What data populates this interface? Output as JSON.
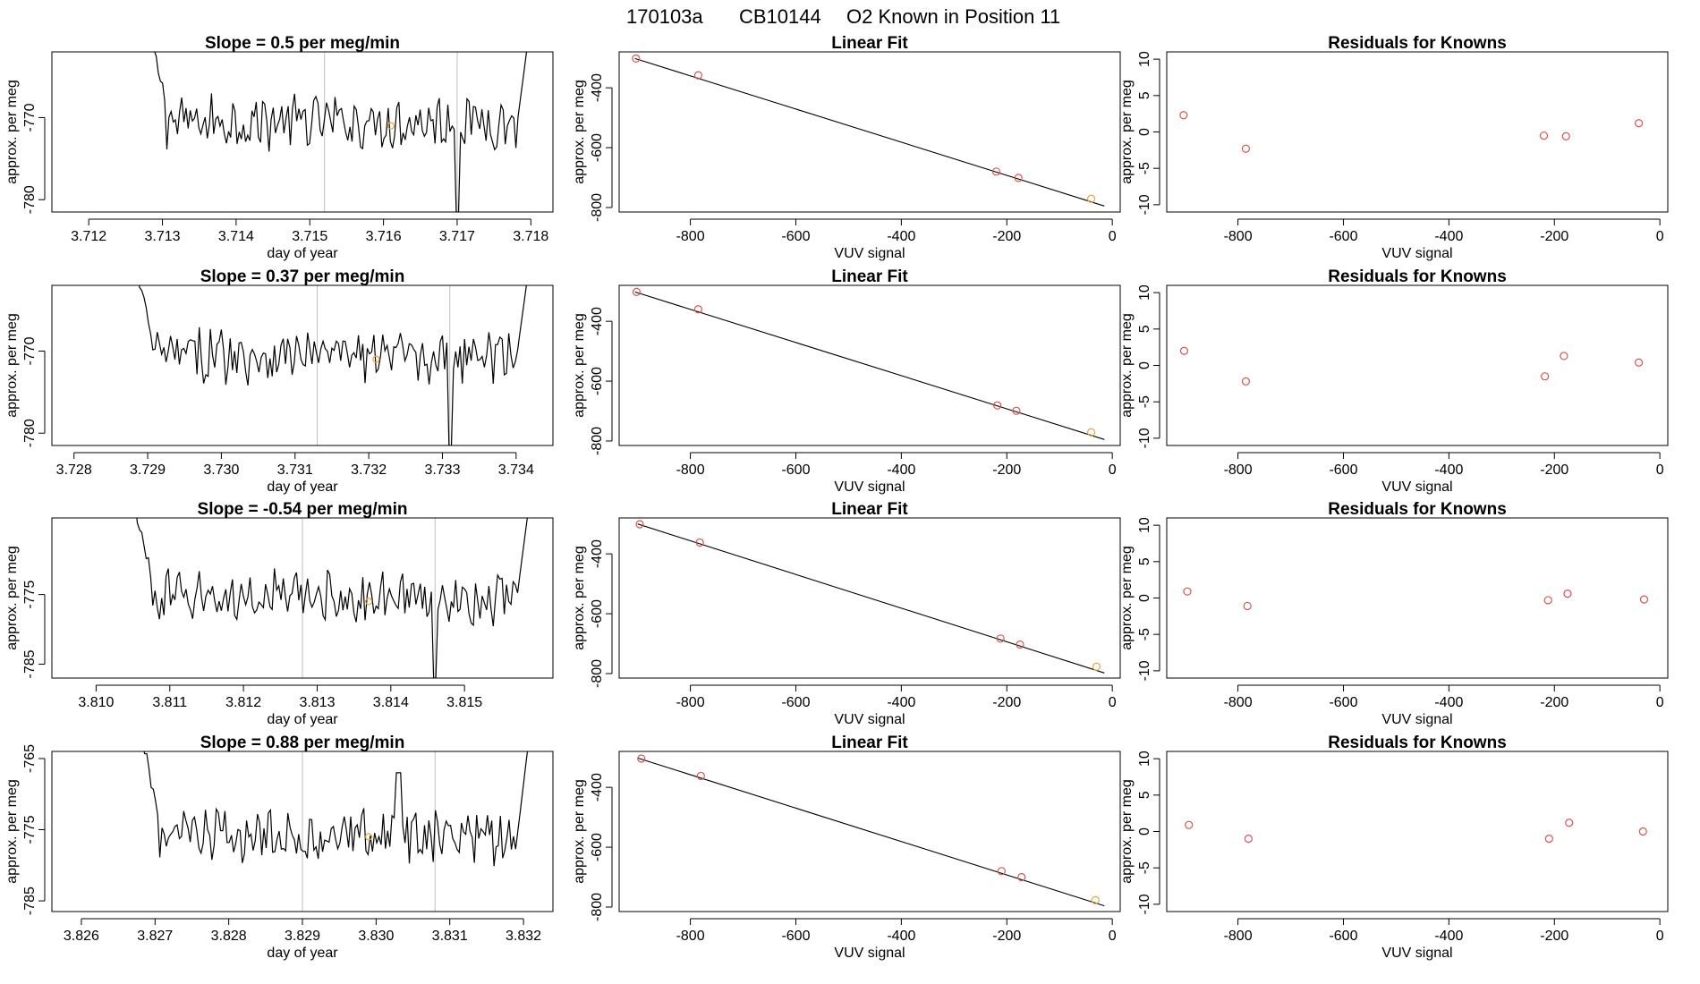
{
  "figure_title": {
    "run": "170103a",
    "tank": "CB10144",
    "description": "O2 Known in Position  11"
  },
  "colors": {
    "trace": "#000000",
    "axes": "#000000",
    "marker_known": "#d9534f",
    "marker_sample": "#e8a33d",
    "vline": "#bfbfbf"
  },
  "chart_data": [
    {
      "row": 1,
      "panel": "time_series",
      "type": "line",
      "title": "Slope =  0.5  per meg/min",
      "xlabel": "day of year",
      "ylabel": "approx. per meg",
      "xlim": [
        3.7115,
        3.7183
      ],
      "ylim": [
        -781.5,
        -762
      ],
      "xticks": [
        3.712,
        3.713,
        3.714,
        3.715,
        3.716,
        3.717,
        3.718
      ],
      "xtick_labels": [
        "3.712",
        "3.713",
        "3.714",
        "3.715",
        "3.716",
        "3.717",
        "3.718"
      ],
      "yticks": [
        -780,
        -770
      ],
      "ytick_labels": [
        "-780",
        "-770"
      ],
      "vlines": [
        3.7152,
        3.717
      ],
      "trace_x_range": [
        3.7128,
        3.718
      ],
      "trace_center": -770.5,
      "trace_amplitude": 2.8,
      "edge_high": true,
      "dip": {
        "x": 3.717,
        "y": -782
      },
      "sample_marker": {
        "x": 3.7161,
        "y": -771
      }
    },
    {
      "row": 1,
      "panel": "linear_fit",
      "type": "scatter",
      "title": "Linear Fit",
      "xlabel": "VUV signal",
      "ylabel": "approx. per meg",
      "xlim": [
        -935,
        15
      ],
      "ylim": [
        -815,
        -280
      ],
      "xticks": [
        -800,
        -600,
        -400,
        -200,
        0
      ],
      "xtick_labels": [
        "-800",
        "-600",
        "-400",
        "-200",
        "0"
      ],
      "yticks": [
        -800,
        -600,
        -400
      ],
      "ytick_labels": [
        "-800",
        "-600",
        "-400"
      ],
      "fit_line": {
        "x": [
          -905,
          -15
        ],
        "y": [
          -302,
          -795
        ]
      },
      "points": [
        {
          "x": -903,
          "y": -302,
          "kind": "known"
        },
        {
          "x": -785,
          "y": -358,
          "kind": "known"
        },
        {
          "x": -220,
          "y": -680,
          "kind": "known"
        },
        {
          "x": -178,
          "y": -701,
          "kind": "known"
        },
        {
          "x": -40,
          "y": -771,
          "kind": "sample"
        }
      ]
    },
    {
      "row": 1,
      "panel": "residuals",
      "type": "scatter",
      "title": "Residuals for Knowns",
      "xlabel": "VUV signal",
      "ylabel": "approx. per meg",
      "xlim": [
        -935,
        15
      ],
      "ylim": [
        -11,
        11
      ],
      "xticks": [
        -800,
        -600,
        -400,
        -200,
        0
      ],
      "xtick_labels": [
        "-800",
        "-600",
        "-400",
        "-200",
        "0"
      ],
      "yticks": [
        -10,
        -5,
        0,
        5,
        10
      ],
      "ytick_labels": [
        "-10",
        "-5",
        "0",
        "5",
        "10"
      ],
      "points": [
        {
          "x": -903,
          "y": 2.3
        },
        {
          "x": -785,
          "y": -2.3
        },
        {
          "x": -220,
          "y": -0.5
        },
        {
          "x": -178,
          "y": -0.6
        },
        {
          "x": -40,
          "y": 1.2
        }
      ]
    },
    {
      "row": 2,
      "panel": "time_series",
      "type": "line",
      "title": "Slope =  0.37  per meg/min",
      "xlabel": "day of year",
      "ylabel": "approx. per meg",
      "xlim": [
        3.7277,
        3.7345
      ],
      "ylim": [
        -781.5,
        -762
      ],
      "xticks": [
        3.728,
        3.729,
        3.73,
        3.731,
        3.732,
        3.733,
        3.734
      ],
      "xtick_labels": [
        "3.728",
        "3.729",
        "3.730",
        "3.731",
        "3.732",
        "3.733",
        "3.734"
      ],
      "yticks": [
        -780,
        -770
      ],
      "ytick_labels": [
        "-780",
        "-770"
      ],
      "vlines": [
        3.7313,
        3.7331
      ],
      "trace_x_range": [
        3.7288,
        3.7342
      ],
      "trace_center": -770.5,
      "trace_amplitude": 2.8,
      "edge_high": true,
      "dip": {
        "x": 3.7331,
        "y": -782
      },
      "sample_marker": {
        "x": 3.7321,
        "y": -771
      }
    },
    {
      "row": 2,
      "panel": "linear_fit",
      "type": "scatter",
      "title": "Linear Fit",
      "xlabel": "VUV signal",
      "ylabel": "approx. per meg",
      "xlim": [
        -935,
        15
      ],
      "ylim": [
        -815,
        -280
      ],
      "xticks": [
        -800,
        -600,
        -400,
        -200,
        0
      ],
      "xtick_labels": [
        "-800",
        "-600",
        "-400",
        "-200",
        "0"
      ],
      "yticks": [
        -800,
        -600,
        -400
      ],
      "ytick_labels": [
        "-800",
        "-600",
        "-400"
      ],
      "fit_line": {
        "x": [
          -905,
          -15
        ],
        "y": [
          -302,
          -795
        ]
      },
      "points": [
        {
          "x": -902,
          "y": -302,
          "kind": "known"
        },
        {
          "x": -785,
          "y": -360,
          "kind": "known"
        },
        {
          "x": -218,
          "y": -681,
          "kind": "known"
        },
        {
          "x": -182,
          "y": -699,
          "kind": "known"
        },
        {
          "x": -40,
          "y": -771,
          "kind": "sample"
        }
      ]
    },
    {
      "row": 2,
      "panel": "residuals",
      "type": "scatter",
      "title": "Residuals for Knowns",
      "xlabel": "VUV signal",
      "ylabel": "approx. per meg",
      "xlim": [
        -935,
        15
      ],
      "ylim": [
        -11,
        11
      ],
      "xticks": [
        -800,
        -600,
        -400,
        -200,
        0
      ],
      "xtick_labels": [
        "-800",
        "-600",
        "-400",
        "-200",
        "0"
      ],
      "yticks": [
        -10,
        -5,
        0,
        5,
        10
      ],
      "ytick_labels": [
        "-10",
        "-5",
        "0",
        "5",
        "10"
      ],
      "points": [
        {
          "x": -902,
          "y": 2.0
        },
        {
          "x": -785,
          "y": -2.2
        },
        {
          "x": -218,
          "y": -1.5
        },
        {
          "x": -182,
          "y": 1.3
        },
        {
          "x": -40,
          "y": 0.4
        }
      ]
    },
    {
      "row": 3,
      "panel": "time_series",
      "type": "line",
      "title": "Slope =  -0.54  per meg/min",
      "xlabel": "day of year",
      "ylabel": "approx. per meg",
      "xlim": [
        3.8094,
        3.8162
      ],
      "ylim": [
        -787,
        -764
      ],
      "xticks": [
        3.81,
        3.811,
        3.812,
        3.813,
        3.814,
        3.815
      ],
      "xtick_labels": [
        "3.810",
        "3.811",
        "3.812",
        "3.813",
        "3.814",
        "3.815"
      ],
      "yticks": [
        -785,
        -775
      ],
      "ytick_labels": [
        "-785",
        "-775"
      ],
      "vlines": [
        3.8128,
        3.8146
      ],
      "trace_x_range": [
        3.8105,
        3.8159
      ],
      "trace_center": -775.5,
      "trace_amplitude": 3.2,
      "edge_high": true,
      "dip": {
        "x": 3.8146,
        "y": -787
      },
      "sample_marker": {
        "x": 3.8137,
        "y": -776
      }
    },
    {
      "row": 3,
      "panel": "linear_fit",
      "type": "scatter",
      "title": "Linear Fit",
      "xlabel": "VUV signal",
      "ylabel": "approx. per meg",
      "xlim": [
        -935,
        15
      ],
      "ylim": [
        -815,
        -280
      ],
      "xticks": [
        -800,
        -600,
        -400,
        -200,
        0
      ],
      "xtick_labels": [
        "-800",
        "-600",
        "-400",
        "-200",
        "0"
      ],
      "yticks": [
        -800,
        -600,
        -400
      ],
      "ytick_labels": [
        "-800",
        "-600",
        "-400"
      ],
      "fit_line": {
        "x": [
          -900,
          -15
        ],
        "y": [
          -300,
          -798
        ]
      },
      "points": [
        {
          "x": -896,
          "y": -301,
          "kind": "known"
        },
        {
          "x": -782,
          "y": -362,
          "kind": "known"
        },
        {
          "x": -212,
          "y": -683,
          "kind": "known"
        },
        {
          "x": -175,
          "y": -703,
          "kind": "known"
        },
        {
          "x": -30,
          "y": -777,
          "kind": "sample"
        }
      ]
    },
    {
      "row": 3,
      "panel": "residuals",
      "type": "scatter",
      "title": "Residuals for Knowns",
      "xlabel": "VUV signal",
      "ylabel": "approx. per meg",
      "xlim": [
        -935,
        15
      ],
      "ylim": [
        -11,
        11
      ],
      "xticks": [
        -800,
        -600,
        -400,
        -200,
        0
      ],
      "xtick_labels": [
        "-800",
        "-600",
        "-400",
        "-200",
        "0"
      ],
      "yticks": [
        -10,
        -5,
        0,
        5,
        10
      ],
      "ytick_labels": [
        "-10",
        "-5",
        "0",
        "5",
        "10"
      ],
      "points": [
        {
          "x": -896,
          "y": 0.9
        },
        {
          "x": -782,
          "y": -1.1
        },
        {
          "x": -212,
          "y": -0.3
        },
        {
          "x": -175,
          "y": 0.6
        },
        {
          "x": -30,
          "y": -0.2
        }
      ]
    },
    {
      "row": 4,
      "panel": "time_series",
      "type": "line",
      "title": "Slope =  0.88  per meg/min",
      "xlabel": "day of year",
      "ylabel": "approx. per meg",
      "xlim": [
        3.8256,
        3.8324
      ],
      "ylim": [
        -786.5,
        -764
      ],
      "xticks": [
        3.826,
        3.827,
        3.828,
        3.829,
        3.83,
        3.831,
        3.832
      ],
      "xtick_labels": [
        "3.826",
        "3.827",
        "3.828",
        "3.829",
        "3.830",
        "3.831",
        "3.832"
      ],
      "yticks": [
        -785,
        -775,
        -765
      ],
      "ytick_labels": [
        "-785",
        "-775",
        "-765"
      ],
      "vlines": [
        3.829,
        3.8308
      ],
      "trace_x_range": [
        3.8268,
        3.8321
      ],
      "trace_center": -776,
      "trace_amplitude": 3.2,
      "edge_high": true,
      "dip": {
        "x": 3.8303,
        "y": -767
      },
      "sample_marker": {
        "x": 3.8299,
        "y": -776
      }
    },
    {
      "row": 4,
      "panel": "linear_fit",
      "type": "scatter",
      "title": "Linear Fit",
      "xlabel": "VUV signal",
      "ylabel": "approx. per meg",
      "xlim": [
        -935,
        15
      ],
      "ylim": [
        -815,
        -280
      ],
      "xticks": [
        -800,
        -600,
        -400,
        -200,
        0
      ],
      "xtick_labels": [
        "-800",
        "-600",
        "-400",
        "-200",
        "0"
      ],
      "yticks": [
        -800,
        -600,
        -400
      ],
      "ytick_labels": [
        "-800",
        "-600",
        "-400"
      ],
      "fit_line": {
        "x": [
          -900,
          -15
        ],
        "y": [
          -302,
          -796
        ]
      },
      "points": [
        {
          "x": -893,
          "y": -304,
          "kind": "known"
        },
        {
          "x": -780,
          "y": -362,
          "kind": "known"
        },
        {
          "x": -210,
          "y": -680,
          "kind": "known"
        },
        {
          "x": -172,
          "y": -700,
          "kind": "known"
        },
        {
          "x": -32,
          "y": -777,
          "kind": "sample"
        }
      ]
    },
    {
      "row": 4,
      "panel": "residuals",
      "type": "scatter",
      "title": "Residuals for Knowns",
      "xlabel": "VUV signal",
      "ylabel": "approx. per meg",
      "xlim": [
        -935,
        15
      ],
      "ylim": [
        -11,
        11
      ],
      "xticks": [
        -800,
        -600,
        -400,
        -200,
        0
      ],
      "xtick_labels": [
        "-800",
        "-600",
        "-400",
        "-200",
        "0"
      ],
      "yticks": [
        -10,
        -5,
        0,
        5,
        10
      ],
      "ytick_labels": [
        "-10",
        "-5",
        "0",
        "5",
        "10"
      ],
      "points": [
        {
          "x": -893,
          "y": 0.9
        },
        {
          "x": -780,
          "y": -1.0
        },
        {
          "x": -210,
          "y": -1.0
        },
        {
          "x": -172,
          "y": 1.2
        },
        {
          "x": -32,
          "y": 0.0
        }
      ]
    }
  ]
}
